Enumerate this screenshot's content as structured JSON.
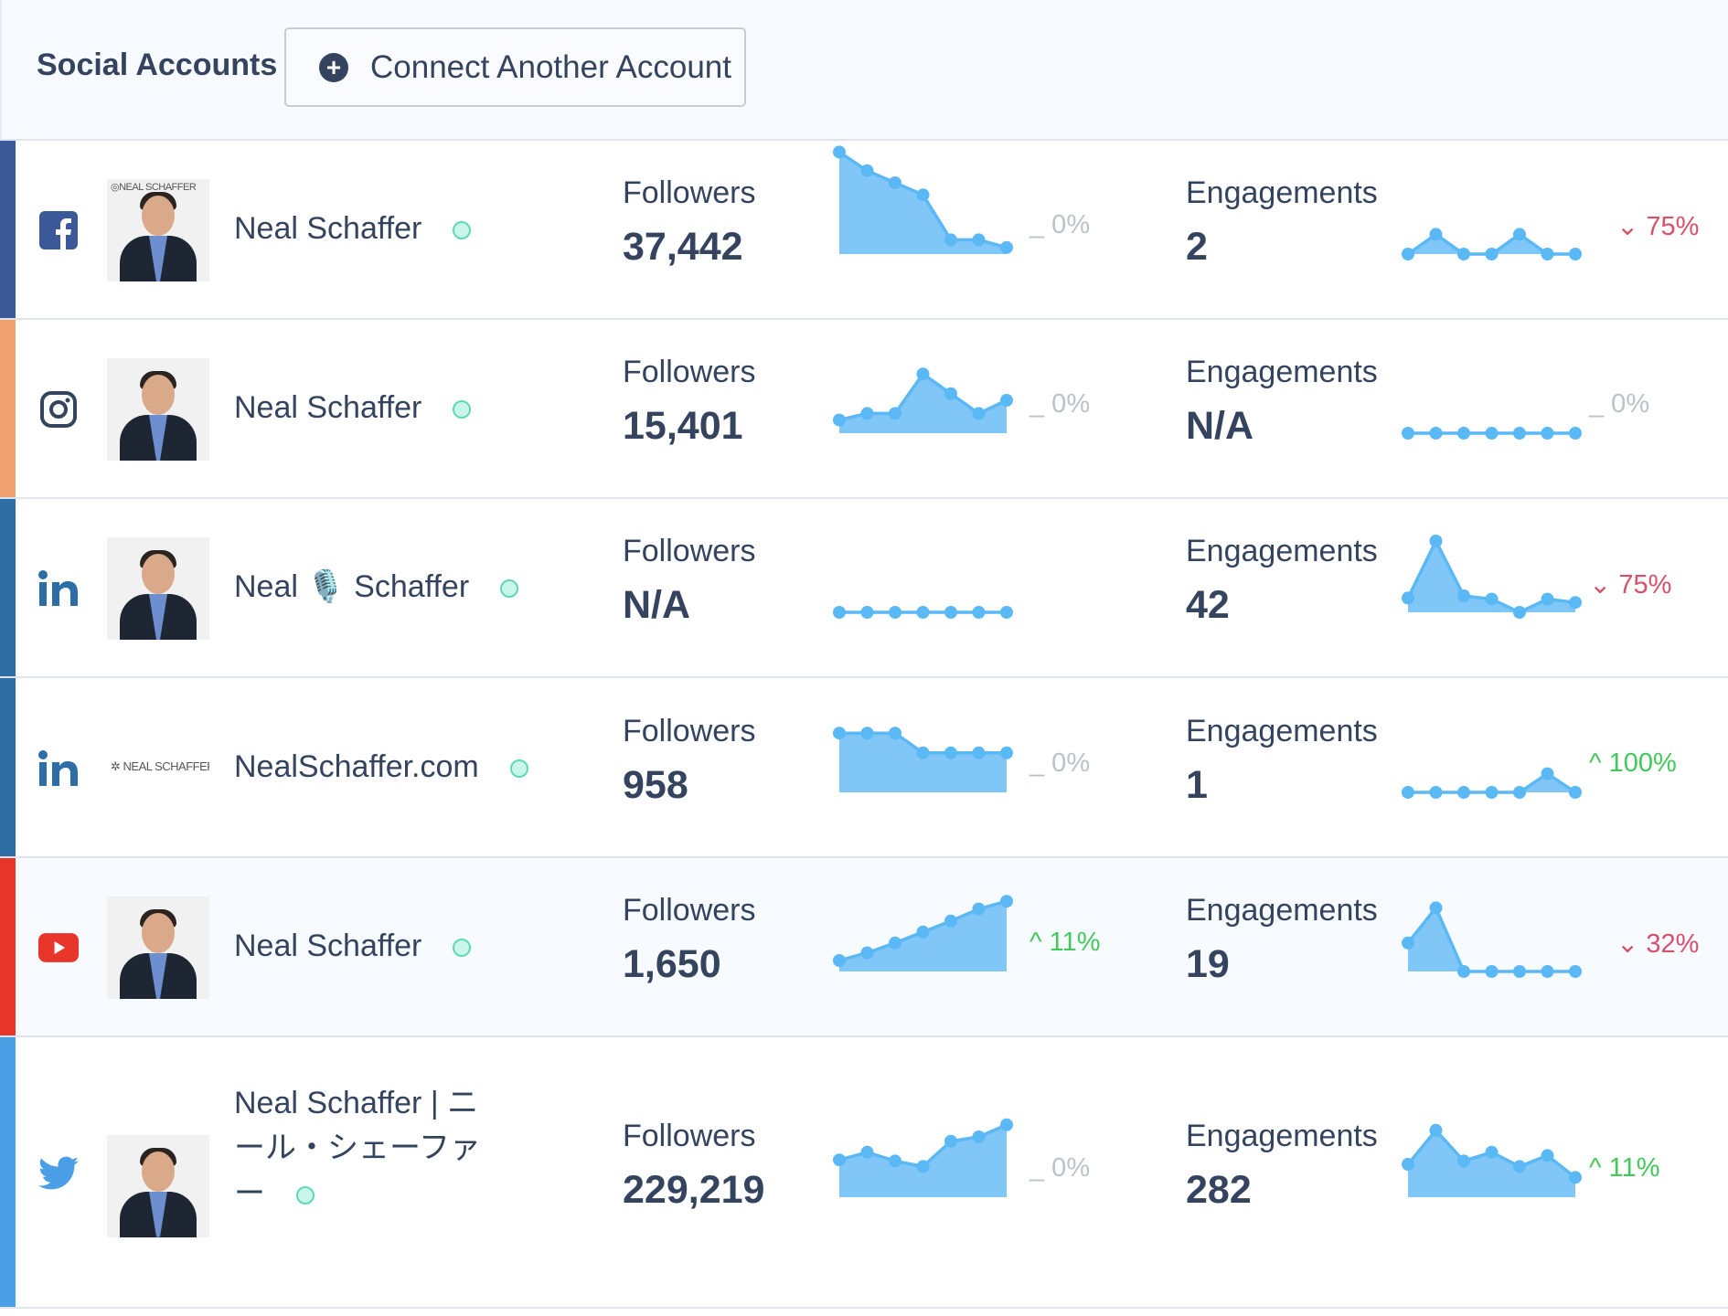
{
  "header": {
    "title": "Social Accounts",
    "connect_label": "Connect Another Account",
    "connect_icon": "plus-circle-icon"
  },
  "colors": {
    "spark_line": "#5ab8f5",
    "spark_fill": "#80c6f7",
    "up": "#43c85a",
    "down": "#d9506a",
    "neutral": "#b9c3c8"
  },
  "accounts": [
    {
      "platform": "facebook",
      "icon": "facebook-icon",
      "color": "#3b5998",
      "name": "Neal Schaffer",
      "avatar_logo": "NEAL SCHAFFER",
      "followers_label": "Followers",
      "followers": "37,442",
      "followers_trend": [
        93,
        76,
        65,
        54,
        13,
        13,
        6
      ],
      "followers_change": "_ 0%",
      "followers_dir": "neutral",
      "engagements_label": "Engagements",
      "engagements": "2",
      "engagements_trend": [
        0,
        18,
        0,
        0,
        18,
        0,
        0
      ],
      "engagements_change": "75%",
      "engagements_dir": "down"
    },
    {
      "platform": "instagram",
      "icon": "instagram-icon",
      "color": "#f1a06f",
      "name": "Neal Schaffer",
      "followers_label": "Followers",
      "followers": "15,401",
      "followers_trend": [
        12,
        18,
        18,
        54,
        36,
        18,
        30
      ],
      "followers_change": "_ 0%",
      "followers_dir": "neutral",
      "engagements_label": "Engagements",
      "engagements": "N/A",
      "engagements_trend": [
        0,
        0,
        0,
        0,
        0,
        0,
        0
      ],
      "engagements_change": "_ 0%",
      "engagements_dir": "neutral"
    },
    {
      "platform": "linkedin",
      "icon": "linkedin-icon",
      "color": "#2e6ea6",
      "name": "Neal 🎙️ Schaffer",
      "followers_label": "Followers",
      "followers": "N/A",
      "followers_trend": [
        0,
        0,
        0,
        0,
        0,
        0,
        0
      ],
      "followers_change": "",
      "followers_dir": "neutral",
      "engagements_label": "Engagements",
      "engagements": "42",
      "engagements_trend": [
        13,
        65,
        15,
        12,
        0,
        12,
        9
      ],
      "engagements_change": "75%",
      "engagements_dir": "down"
    },
    {
      "platform": "linkedin",
      "icon": "linkedin-icon",
      "color": "#2e6ea6",
      "name": "NealSchaffer.com",
      "avatar_logo": "NEAL SCHAFFER",
      "followers_label": "Followers",
      "followers": "958",
      "followers_trend": [
        54,
        54,
        54,
        36,
        36,
        36,
        36
      ],
      "followers_change": "_ 0%",
      "followers_dir": "neutral",
      "engagements_label": "Engagements",
      "engagements": "1",
      "engagements_trend": [
        0,
        0,
        0,
        0,
        0,
        17,
        0
      ],
      "engagements_change": "100%",
      "engagements_dir": "up"
    },
    {
      "platform": "youtube",
      "icon": "youtube-icon",
      "color": "#e8352a",
      "name": "Neal Schaffer",
      "followers_label": "Followers",
      "followers": "1,650",
      "followers_trend": [
        10,
        17,
        26,
        36,
        46,
        57,
        64
      ],
      "followers_change": "11%",
      "followers_dir": "up",
      "engagements_label": "Engagements",
      "engagements": "19",
      "engagements_trend": [
        26,
        58,
        0,
        0,
        0,
        0,
        0
      ],
      "engagements_change": "32%",
      "engagements_dir": "down"
    },
    {
      "platform": "twitter",
      "icon": "twitter-icon",
      "color": "#4a9fe6",
      "name": "Neal Schaffer | ニール・シェーファー",
      "followers_label": "Followers",
      "followers": "229,219",
      "followers_trend": [
        34,
        41,
        33,
        28,
        51,
        55,
        66
      ],
      "followers_change": "_ 0%",
      "followers_dir": "neutral",
      "engagements_label": "Engagements",
      "engagements": "282",
      "engagements_trend": [
        30,
        61,
        33,
        41,
        28,
        38,
        18
      ],
      "engagements_change": "11%",
      "engagements_dir": "up"
    }
  ]
}
